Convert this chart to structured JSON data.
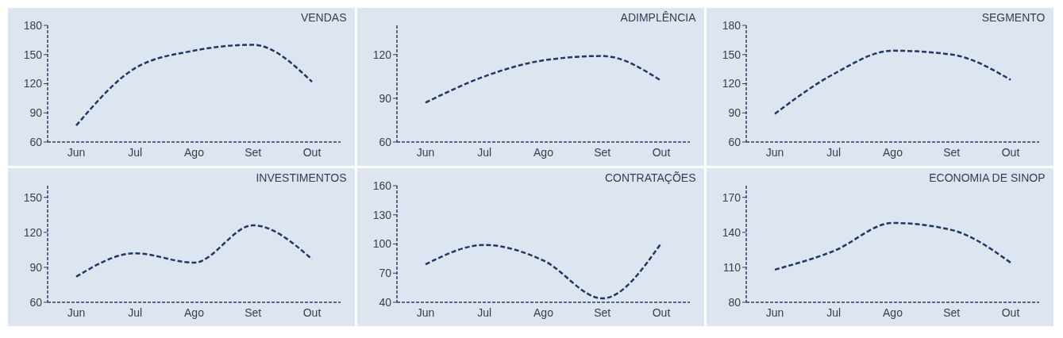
{
  "chart_data": [
    {
      "type": "line",
      "title": "VENDAS",
      "categories": [
        "Jun",
        "Jul",
        "Ago",
        "Set",
        "Out"
      ],
      "series": [
        {
          "color": "#1f3864",
          "values": [
            77,
            136,
            154,
            160,
            122
          ]
        }
      ],
      "ylim": [
        60,
        180
      ],
      "yticks": [
        60,
        90,
        120,
        150,
        180
      ],
      "line_style": "dashed",
      "marker": "none",
      "grid": false
    },
    {
      "type": "line",
      "title": "ADIMPLÊNCIA",
      "categories": [
        "Jun",
        "Jul",
        "Ago",
        "Set",
        "Out"
      ],
      "series": [
        {
          "color": "#1f3864",
          "values": [
            87,
            105,
            116,
            119,
            102
          ]
        }
      ],
      "ylim": [
        60,
        140
      ],
      "yticks": [
        60,
        90,
        120
      ],
      "line_style": "dashed",
      "marker": "none",
      "grid": false
    },
    {
      "type": "line",
      "title": "SEGMENTO",
      "categories": [
        "Jun",
        "Jul",
        "Ago",
        "Set",
        "Out"
      ],
      "series": [
        {
          "color": "#1f3864",
          "values": [
            89,
            130,
            154,
            150,
            124
          ]
        }
      ],
      "ylim": [
        60,
        180
      ],
      "yticks": [
        60,
        90,
        120,
        150,
        180
      ],
      "line_style": "dashed",
      "marker": "none",
      "grid": false
    },
    {
      "type": "line",
      "title": "INVESTIMENTOS",
      "categories": [
        "Jun",
        "Jul",
        "Ago",
        "Set",
        "Out"
      ],
      "series": [
        {
          "color": "#1f3864",
          "values": [
            82,
            102,
            94,
            126,
            97
          ]
        }
      ],
      "ylim": [
        60,
        160
      ],
      "yticks": [
        60,
        90,
        120,
        150
      ],
      "line_style": "dashed",
      "marker": "none",
      "grid": false
    },
    {
      "type": "line",
      "title": "CONTRATAÇÕES",
      "categories": [
        "Jun",
        "Jul",
        "Ago",
        "Set",
        "Out"
      ],
      "series": [
        {
          "color": "#1f3864",
          "values": [
            79,
            99,
            83,
            44,
            101
          ]
        }
      ],
      "ylim": [
        40,
        160
      ],
      "yticks": [
        40,
        70,
        100,
        130,
        160
      ],
      "line_style": "dashed",
      "marker": "none",
      "grid": false
    },
    {
      "type": "line",
      "title": "ECONOMIA DE SINOP",
      "categories": [
        "Jun",
        "Jul",
        "Ago",
        "Set",
        "Out"
      ],
      "series": [
        {
          "color": "#1f3864",
          "values": [
            108,
            124,
            148,
            142,
            114
          ]
        }
      ],
      "ylim": [
        80,
        180
      ],
      "yticks": [
        80,
        110,
        140,
        170
      ],
      "line_style": "dashed",
      "marker": "none",
      "grid": false
    }
  ]
}
